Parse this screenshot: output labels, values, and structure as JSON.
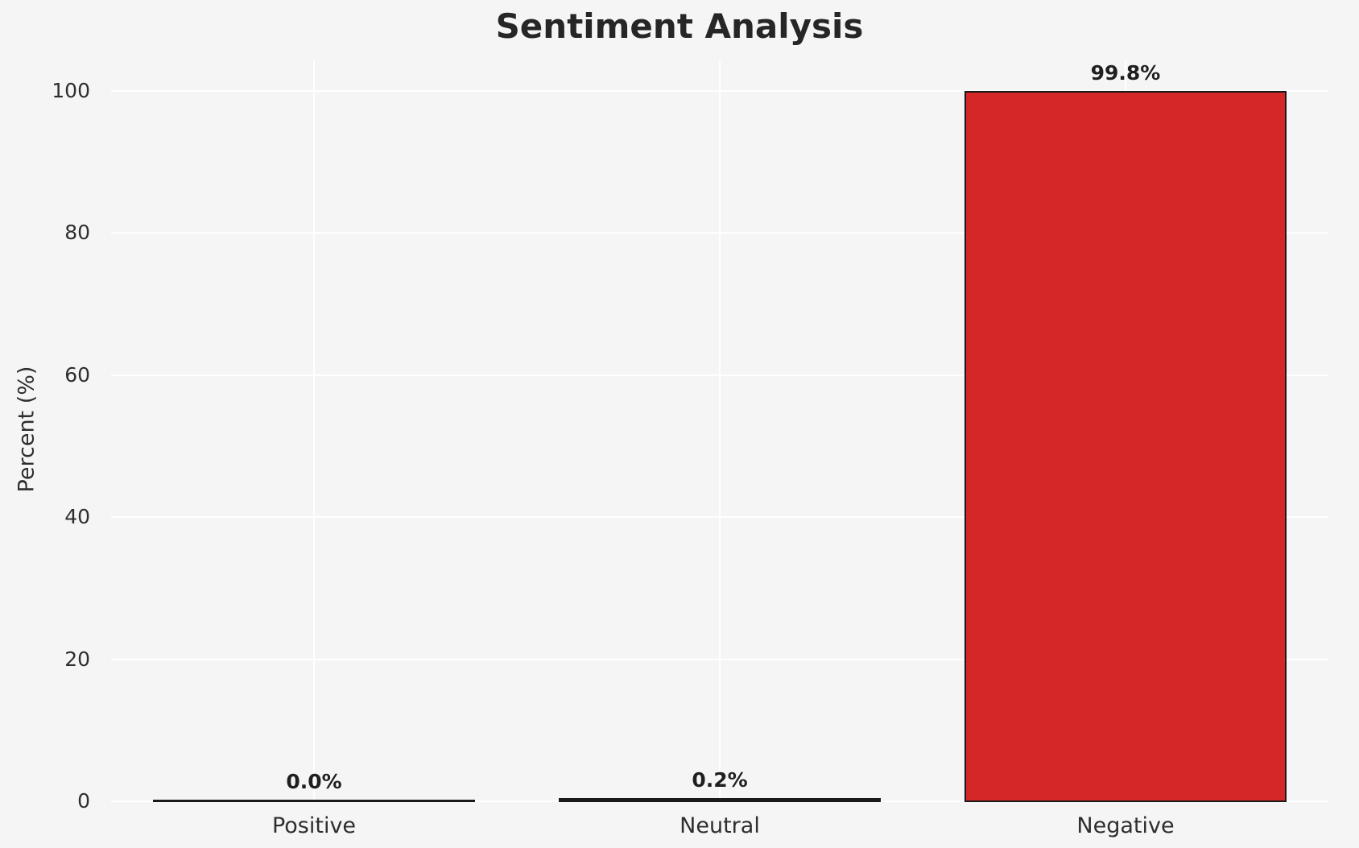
{
  "title": "Sentiment Analysis",
  "chart_data": {
    "type": "bar",
    "title": "Sentiment Analysis",
    "categories": [
      "Positive",
      "Neutral",
      "Negative"
    ],
    "values": [
      0.0,
      0.2,
      99.8
    ],
    "value_labels": [
      "0.0%",
      "0.2%",
      "99.8%"
    ],
    "xlabel": "",
    "ylabel": "Percent (%)",
    "ylim": [
      0,
      104
    ],
    "yticks": [
      0,
      20,
      40,
      60,
      80,
      100
    ],
    "grid": true,
    "legend": "none",
    "bar_colors": [
      "#1a1a1a",
      "#1a1a1a",
      "#d62728"
    ],
    "bar_edge_color": "#1a1a1a",
    "background_color": "#f5f5f5",
    "gridline_color": "#ffffff"
  }
}
